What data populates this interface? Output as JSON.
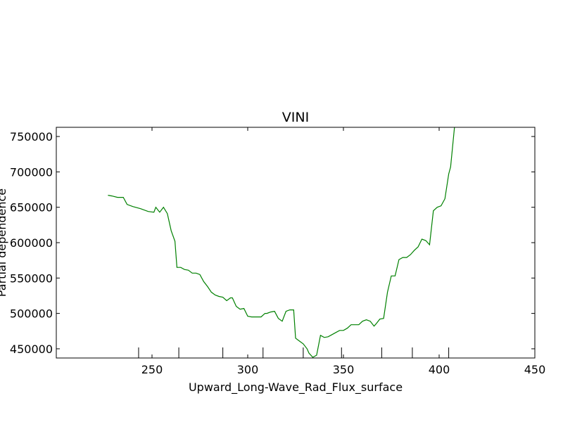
{
  "chart_data": {
    "type": "line",
    "title": "VINI",
    "xlabel": "Upward_Long-Wave_Rad_Flux_surface",
    "ylabel": "Partial dependence",
    "xlim": [
      200,
      450
    ],
    "ylim": [
      437000,
      763000
    ],
    "xticks": [
      250,
      300,
      350,
      400,
      450
    ],
    "xtick_labels": [
      "250",
      "300",
      "350",
      "400",
      "450"
    ],
    "yticks": [
      450000,
      500000,
      550000,
      600000,
      650000,
      700000,
      750000
    ],
    "ytick_labels": [
      "450000",
      "500000",
      "550000",
      "600000",
      "650000",
      "700000",
      "750000"
    ],
    "rug": [
      243,
      264,
      287,
      308,
      329,
      349,
      370,
      386,
      405
    ],
    "grid": false,
    "series": [
      {
        "color": "#008000",
        "x": [
          227,
          229,
          232,
          235,
          237,
          240,
          244,
          248,
          251,
          252,
          254,
          256,
          258,
          260,
          262,
          263,
          265,
          267,
          269,
          271,
          273,
          275,
          277,
          279,
          281,
          283,
          285,
          287,
          289,
          291,
          292,
          294,
          296,
          298,
          300,
          302,
          304,
          306,
          307,
          309,
          310,
          312,
          314,
          316,
          318,
          320,
          322,
          324,
          325,
          327,
          329,
          331,
          332,
          334,
          336,
          338,
          340,
          342,
          344,
          346,
          348,
          350,
          352,
          354,
          356,
          358,
          360,
          362,
          364,
          366,
          367,
          369,
          371,
          373,
          375,
          377,
          379,
          381,
          383,
          385,
          387,
          389,
          391,
          393,
          395,
          397,
          399,
          401,
          403,
          405,
          406,
          408
        ],
        "y": [
          667000,
          666000,
          664000,
          664000,
          654000,
          651000,
          648000,
          644000,
          643000,
          650000,
          643000,
          650000,
          641000,
          617000,
          602000,
          565000,
          565000,
          562000,
          561000,
          557000,
          557000,
          555000,
          545000,
          538000,
          530000,
          526000,
          524000,
          523000,
          518000,
          522000,
          522000,
          510000,
          506000,
          507000,
          496000,
          495000,
          495000,
          495000,
          495000,
          500000,
          500000,
          502000,
          503000,
          493000,
          489000,
          503000,
          505000,
          505000,
          465000,
          461000,
          457000,
          450000,
          444000,
          438000,
          441000,
          469000,
          466000,
          467000,
          470000,
          473000,
          476000,
          476000,
          479000,
          484000,
          484000,
          484000,
          489000,
          491000,
          489000,
          482000,
          485000,
          492000,
          493000,
          530000,
          553000,
          553000,
          576000,
          579000,
          579000,
          583000,
          589000,
          594000,
          605000,
          603000,
          597000,
          645000,
          650000,
          652000,
          662000,
          697000,
          707000,
          763000
        ]
      }
    ]
  }
}
